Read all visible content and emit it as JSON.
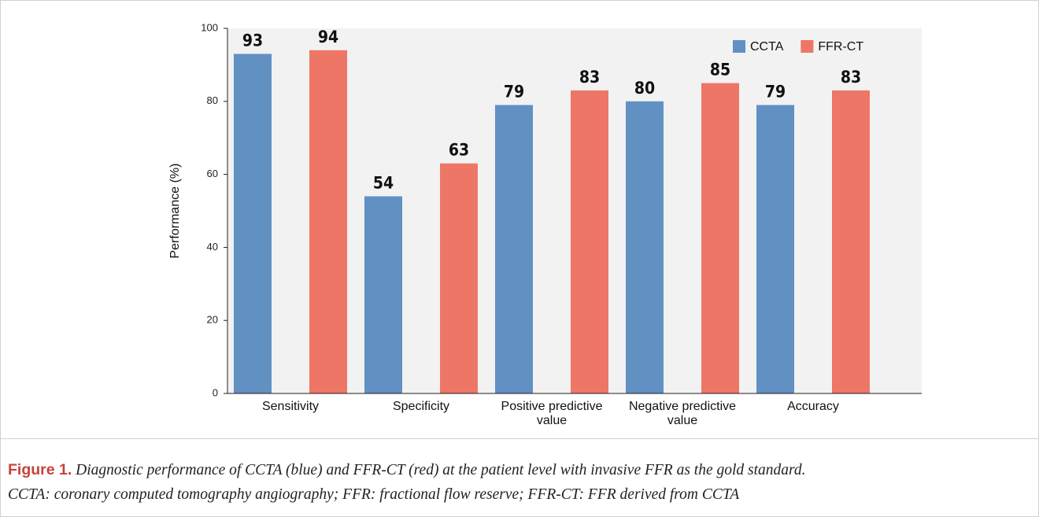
{
  "chart_data": {
    "type": "bar",
    "categories": [
      "Sensitivity",
      "Specificity",
      "Positive predictive value",
      "Negative predictive value",
      "Accuracy"
    ],
    "series": [
      {
        "name": "CCTA",
        "color": "#6190c3",
        "values": [
          93,
          54,
          79,
          80,
          79
        ]
      },
      {
        "name": "FFR-CT",
        "color": "#ee7666",
        "values": [
          94,
          63,
          83,
          85,
          83
        ]
      }
    ],
    "ylabel": "Performance (%)",
    "ylim": [
      0,
      100
    ],
    "yticks": [
      0,
      20,
      40,
      60,
      80,
      100
    ],
    "legend": "upper right",
    "background": "#f2f2f2"
  },
  "caption": {
    "label": "Figure 1.",
    "lines": [
      "Diagnostic performance of CCTA (blue) and FFR-CT (red) at the patient level with invasive FFR as the gold standard.",
      "CCTA: coronary computed tomography angiography; FFR: fractional flow reserve; FFR-CT: FFR derived from CCTA"
    ]
  }
}
